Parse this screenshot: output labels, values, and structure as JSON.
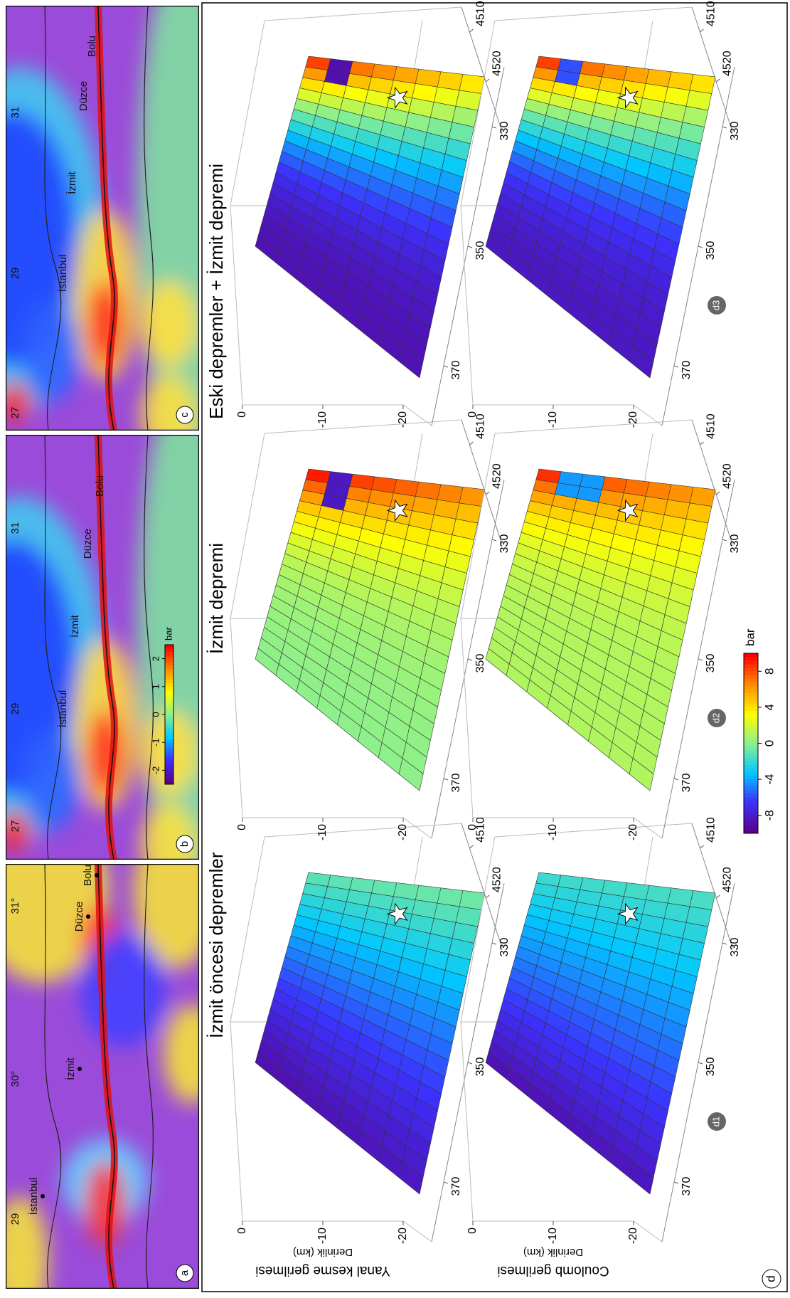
{
  "figure": {
    "maps": [
      {
        "label": "a",
        "lon_ticks": [
          "29",
          "30°",
          "31°"
        ],
        "places": [
          "İstanbul",
          "İzmit",
          "Düzce",
          "Bolu"
        ]
      },
      {
        "label": "b",
        "lon_ticks": [
          "27",
          "29",
          "31"
        ],
        "places": [
          "İstanbul",
          "İzmit",
          "Düzce",
          "Bolu"
        ]
      },
      {
        "label": "c",
        "lon_ticks": [
          "27",
          "29",
          "31"
        ],
        "places": [
          "İstanbul",
          "İzmit",
          "Düzce",
          "Bolu"
        ]
      }
    ],
    "map_colorbar": {
      "title": "bar",
      "ticks": [
        -2,
        -1,
        0,
        1,
        2
      ],
      "lim": [
        -2.5,
        2.5
      ]
    },
    "panel_d": {
      "label": "d",
      "row_titles": [
        "Yanal kesme gerilmesi",
        "Coulomb gerilmesi"
      ],
      "depth_label": "Derinlik (km)",
      "columns": [
        {
          "title": "İzmit öncesi depremler",
          "label": "d1"
        },
        {
          "title": "İzmit depremi",
          "label": "d2"
        },
        {
          "title": "Eski depremler + İzmit depremi",
          "label": "d3"
        }
      ],
      "depth_ticks": [
        0,
        -10,
        -20
      ],
      "depth_lim": [
        0,
        -20
      ],
      "x_ticks": [
        370,
        350,
        330
      ],
      "x_lim": [
        380,
        320
      ],
      "y_ticks": [
        4520,
        4510
      ],
      "y_lim": [
        4530,
        4505
      ],
      "colorbar": {
        "title": "bar",
        "ticks": [
          -8,
          -4,
          0,
          4,
          8
        ],
        "lim": [
          -10,
          10
        ]
      }
    }
  }
}
